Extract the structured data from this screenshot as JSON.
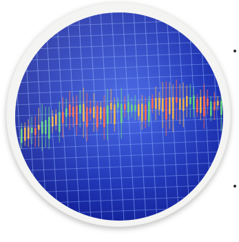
{
  "photo": {
    "subject": "candlestick-price-chart-screen",
    "colors": {
      "ring": "#f4f4f2",
      "background_deep": "#0b1a86",
      "background_light": "#3a55d8",
      "grid": "#8fb3ff",
      "candle_up": "#66d37a",
      "candle_down": "#ff6a4a",
      "candle_mid": "#f2b24a"
    }
  }
}
